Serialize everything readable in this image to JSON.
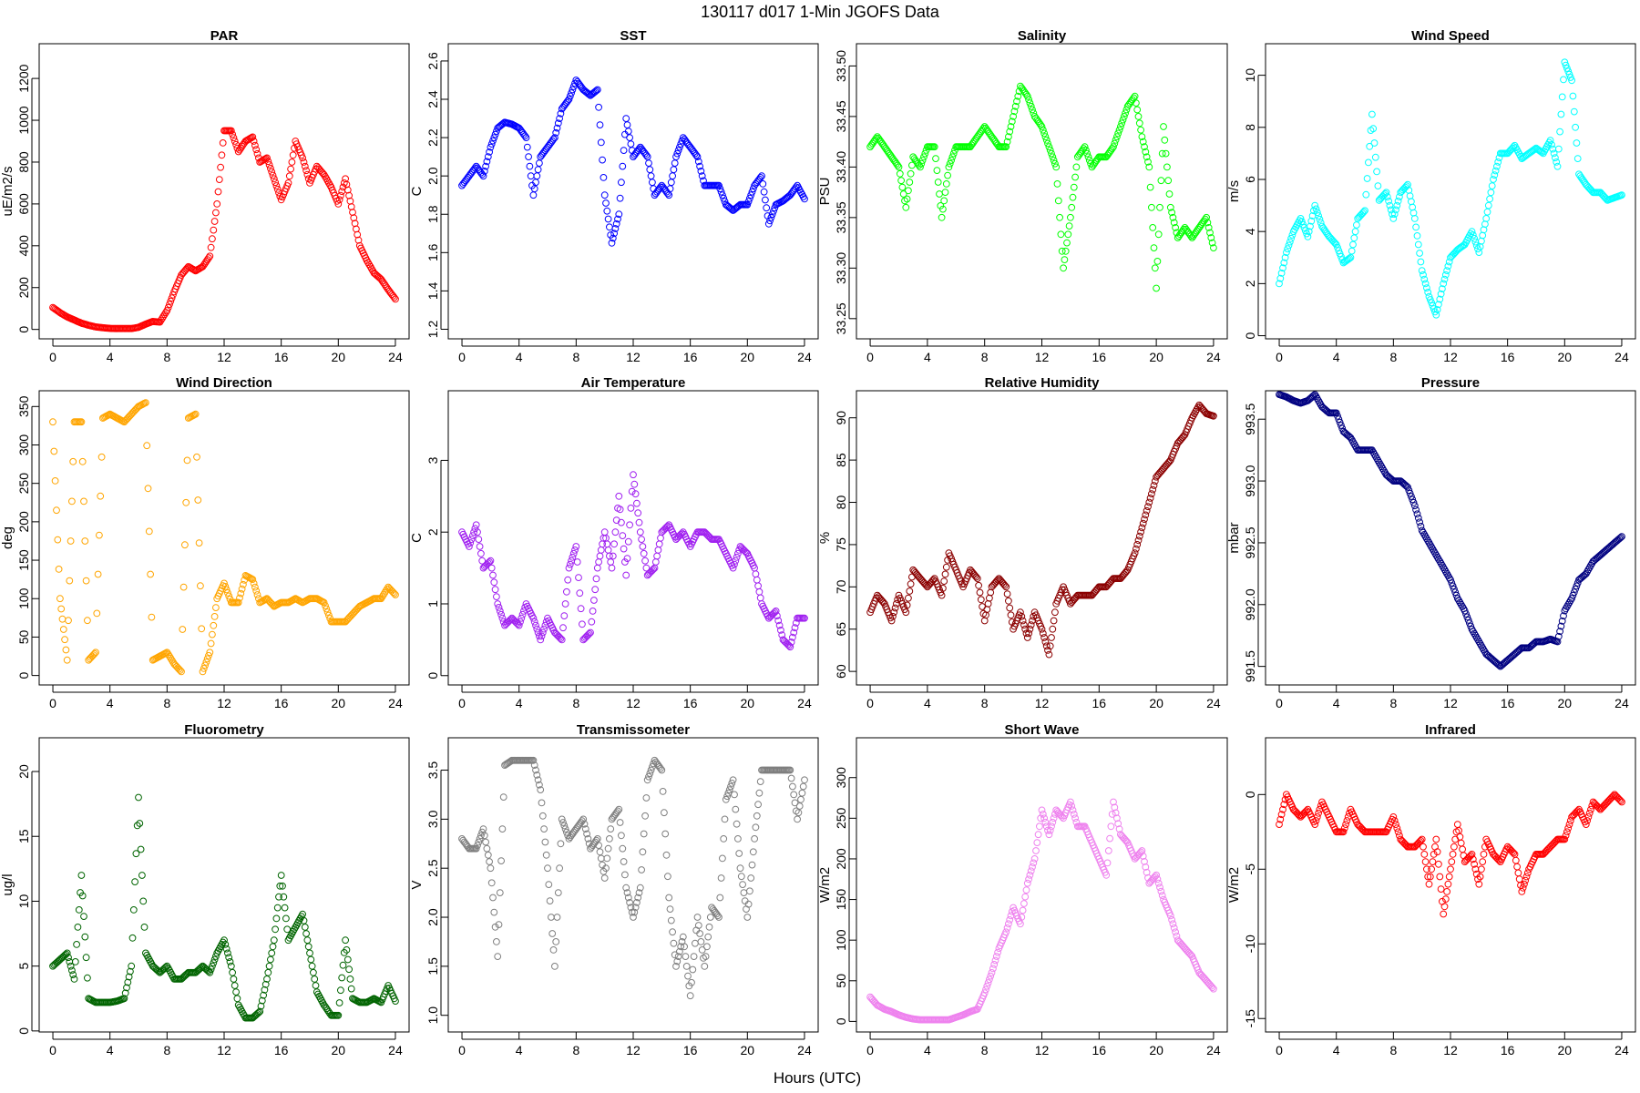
{
  "figure_title": "130117   d017   1-Min  JGOFS Data",
  "xlabel": "Hours (UTC)",
  "chart_data": [
    {
      "type": "scatter",
      "title": "PAR",
      "ylabel": "uE/m2/s",
      "color": "#ff0000",
      "xlim": [
        0,
        24
      ],
      "ylim": [
        -45,
        1366
      ],
      "xticks": [
        0,
        4,
        8,
        12,
        16,
        20,
        24
      ],
      "yticks": [
        0,
        200,
        400,
        600,
        800,
        1000,
        1200
      ],
      "x_step": 0.5,
      "y": [
        105,
        80,
        60,
        45,
        30,
        20,
        12,
        8,
        5,
        4,
        4,
        4,
        10,
        25,
        38,
        35,
        90,
        180,
        260,
        300,
        280,
        300,
        350,
        600,
        950,
        950,
        850,
        900,
        920,
        800,
        820,
        720,
        620,
        700,
        900,
        820,
        700,
        780,
        740,
        680,
        600,
        720,
        560,
        400,
        330,
        270,
        240,
        190,
        145
      ]
    },
    {
      "type": "scatter",
      "title": "SST",
      "ylabel": "C",
      "color": "#0000ff",
      "xlim": [
        0,
        24
      ],
      "ylim": [
        1.15,
        2.69
      ],
      "xticks": [
        0,
        4,
        8,
        12,
        16,
        20,
        24
      ],
      "yticks": [
        1.2,
        1.4,
        1.6,
        1.8,
        2.0,
        2.2,
        2.4,
        2.6
      ],
      "x_step": 0.5,
      "y": [
        1.95,
        2.0,
        2.05,
        2.0,
        2.15,
        2.25,
        2.28,
        2.27,
        2.25,
        2.2,
        1.9,
        2.1,
        2.15,
        2.2,
        2.35,
        2.4,
        2.5,
        2.45,
        2.42,
        2.45,
        1.9,
        1.65,
        1.8,
        2.3,
        2.1,
        2.15,
        2.1,
        1.9,
        1.95,
        1.9,
        2.1,
        2.2,
        2.15,
        2.1,
        1.95,
        1.95,
        1.95,
        1.85,
        1.82,
        1.85,
        1.85,
        1.95,
        2.0,
        1.75,
        1.85,
        1.87,
        1.9,
        1.95,
        1.88
      ]
    },
    {
      "type": "scatter",
      "title": "Salinity",
      "ylabel": "PSU",
      "color": "#00ff00",
      "xlim": [
        0,
        24
      ],
      "ylim": [
        33.23,
        33.522
      ],
      "xticks": [
        0,
        4,
        8,
        12,
        16,
        20,
        24
      ],
      "yticks": [
        33.25,
        33.3,
        33.35,
        33.4,
        33.45,
        33.5
      ],
      "x_step": 0.5,
      "y": [
        33.42,
        33.43,
        33.42,
        33.41,
        33.4,
        33.36,
        33.41,
        33.4,
        33.42,
        33.42,
        33.35,
        33.4,
        33.42,
        33.42,
        33.42,
        33.43,
        33.44,
        33.43,
        33.42,
        33.42,
        33.45,
        33.48,
        33.47,
        33.45,
        33.44,
        33.42,
        33.4,
        33.3,
        33.35,
        33.41,
        33.42,
        33.4,
        33.41,
        33.41,
        33.42,
        33.44,
        33.46,
        33.47,
        33.43,
        33.4,
        33.28,
        33.44,
        33.36,
        33.33,
        33.34,
        33.33,
        33.34,
        33.35,
        33.32
      ]
    },
    {
      "type": "scatter",
      "title": "Wind Speed",
      "ylabel": "m/s",
      "color": "#00ffff",
      "xlim": [
        0,
        24
      ],
      "ylim": [
        -0.12,
        11.21
      ],
      "xticks": [
        0,
        4,
        8,
        12,
        16,
        20,
        24
      ],
      "yticks": [
        0,
        2,
        4,
        6,
        8,
        10
      ],
      "x_step": 0.5,
      "y": [
        2,
        3.2,
        4,
        4.5,
        3.8,
        5,
        4.2,
        3.8,
        3.5,
        2.8,
        3,
        4.5,
        4.8,
        8.5,
        5.2,
        5.5,
        4.5,
        5.5,
        5.8,
        4.5,
        2.5,
        1.5,
        0.8,
        2,
        3,
        3.3,
        3.5,
        4,
        3.2,
        4.5,
        6,
        7,
        7,
        7.3,
        6.8,
        7,
        7.2,
        7,
        7.5,
        6.5,
        10.5,
        9.8,
        6.2,
        5.8,
        5.5,
        5.5,
        5.2,
        5.3,
        5.4
      ]
    },
    {
      "type": "scatter",
      "title": "Wind Direction",
      "ylabel": "deg",
      "color": "#ffa500",
      "xlim": [
        0,
        24
      ],
      "ylim": [
        -12.3,
        370.5
      ],
      "xticks": [
        0,
        4,
        8,
        12,
        16,
        20,
        24
      ],
      "yticks": [
        0,
        50,
        100,
        150,
        200,
        250,
        300,
        350
      ],
      "x_step": 0.5,
      "y": [
        330,
        100,
        20,
        330,
        330,
        20,
        30,
        335,
        340,
        335,
        330,
        340,
        350,
        355,
        20,
        25,
        30,
        15,
        5,
        335,
        340,
        5,
        30,
        100,
        120,
        95,
        95,
        130,
        125,
        95,
        100,
        90,
        95,
        95,
        100,
        95,
        100,
        100,
        95,
        70,
        70,
        70,
        80,
        90,
        95,
        100,
        100,
        115,
        105
      ]
    },
    {
      "type": "scatter",
      "title": "Air Temperature",
      "ylabel": "C",
      "color": "#a020f0",
      "xlim": [
        0,
        24
      ],
      "ylim": [
        -0.13,
        3.97
      ],
      "xticks": [
        0,
        4,
        8,
        12,
        16,
        20,
        24
      ],
      "yticks": [
        0,
        1,
        2,
        3
      ],
      "x_step": 0.5,
      "y": [
        2.0,
        1.8,
        2.1,
        1.5,
        1.6,
        1.0,
        0.7,
        0.8,
        0.7,
        1.0,
        0.8,
        0.5,
        0.8,
        0.6,
        0.5,
        1.5,
        1.8,
        0.5,
        0.6,
        1.5,
        2.0,
        1.5,
        2.5,
        1.4,
        2.8,
        2.0,
        1.4,
        1.5,
        2.0,
        2.1,
        1.9,
        2.0,
        1.8,
        2.0,
        2.0,
        1.9,
        1.9,
        1.7,
        1.5,
        1.8,
        1.7,
        1.5,
        1.0,
        0.8,
        0.9,
        0.5,
        0.4,
        0.8,
        0.8
      ]
    },
    {
      "type": "scatter",
      "title": "Relative Humidity",
      "ylabel": "%",
      "color": "#8b0000",
      "xlim": [
        0,
        24
      ],
      "ylim": [
        58.4,
        93.2
      ],
      "xticks": [
        0,
        4,
        8,
        12,
        16,
        20,
        24
      ],
      "yticks": [
        60,
        65,
        70,
        75,
        80,
        85,
        90
      ],
      "x_step": 0.5,
      "y": [
        67,
        69,
        68,
        66,
        69,
        67,
        72,
        71,
        70,
        71,
        69,
        74,
        72,
        70,
        72,
        71,
        66,
        70,
        71,
        70,
        65,
        67,
        64,
        67,
        65,
        62,
        68,
        70,
        68,
        69,
        69,
        69,
        70,
        70,
        71,
        71,
        72,
        74,
        77,
        80,
        83,
        84,
        85,
        87,
        88,
        90,
        91.5,
        90.5,
        90.2
      ]
    },
    {
      "type": "scatter",
      "title": "Pressure",
      "ylabel": "mbar",
      "color": "#000080",
      "xlim": [
        0,
        24
      ],
      "ylim": [
        991.35,
        993.73
      ],
      "xticks": [
        0,
        4,
        8,
        12,
        16,
        20,
        24
      ],
      "yticks": [
        991.5,
        992.0,
        992.5,
        993.0,
        993.5
      ],
      "x_step": 0.5,
      "y": [
        993.7,
        993.68,
        993.65,
        993.63,
        993.65,
        993.7,
        993.6,
        993.55,
        993.55,
        993.4,
        993.35,
        993.25,
        993.25,
        993.25,
        993.15,
        993.05,
        993.0,
        993.0,
        992.95,
        992.8,
        992.6,
        992.5,
        992.4,
        992.3,
        992.2,
        992.05,
        991.95,
        991.8,
        991.7,
        991.6,
        991.55,
        991.5,
        991.55,
        991.6,
        991.65,
        991.65,
        991.7,
        991.7,
        991.72,
        991.7,
        991.95,
        992.05,
        992.2,
        992.25,
        992.35,
        992.4,
        992.45,
        992.5,
        992.55
      ]
    },
    {
      "type": "scatter",
      "title": "Fluorometry",
      "ylabel": "ug/l",
      "color": "#006400",
      "xlim": [
        0,
        24
      ],
      "ylim": [
        -0.08,
        22.6
      ],
      "xticks": [
        0,
        4,
        8,
        12,
        16,
        20,
        24
      ],
      "yticks": [
        0,
        5,
        10,
        15,
        20
      ],
      "x_step": 0.5,
      "y": [
        5,
        5.5,
        6,
        4,
        12,
        2.5,
        2.2,
        2.2,
        2.2,
        2.3,
        2.5,
        5,
        18,
        6,
        5,
        4.5,
        5,
        4,
        4,
        4.5,
        4.5,
        5,
        4.5,
        6,
        7,
        5,
        2,
        1,
        1,
        1.5,
        4,
        7,
        12,
        7,
        8,
        9,
        6,
        3,
        2,
        1.2,
        1.2,
        7,
        2.5,
        2.2,
        2.2,
        2.5,
        2.2,
        3.5,
        2.3
      ]
    },
    {
      "type": "scatter",
      "title": "Transmissometer",
      "ylabel": "V",
      "color": "#7f7f7f",
      "xlim": [
        0,
        24
      ],
      "ylim": [
        0.83,
        3.83
      ],
      "xticks": [
        0,
        4,
        8,
        12,
        16,
        20,
        24
      ],
      "yticks": [
        1.0,
        1.5,
        2.0,
        2.5,
        3.0,
        3.5
      ],
      "x_step": 0.5,
      "y": [
        2.8,
        2.7,
        2.7,
        2.9,
        2.5,
        1.6,
        3.55,
        3.6,
        3.6,
        3.6,
        3.6,
        3.3,
        2.5,
        1.5,
        3.0,
        2.8,
        2.9,
        3.0,
        2.7,
        2.8,
        2.4,
        3.0,
        3.1,
        2.3,
        2.0,
        2.3,
        3.4,
        3.6,
        3.5,
        2.2,
        1.5,
        1.8,
        1.2,
        2.0,
        1.5,
        2.1,
        2.0,
        3.2,
        3.4,
        2.5,
        2.0,
        2.8,
        3.5,
        3.5,
        3.5,
        3.5,
        3.5,
        3.0,
        3.4
      ]
    },
    {
      "type": "scatter",
      "title": "Short Wave",
      "ylabel": "W/m2",
      "color": "#ee82ee",
      "xlim": [
        0,
        24
      ],
      "ylim": [
        -13,
        349
      ],
      "xticks": [
        0,
        4,
        8,
        12,
        16,
        20,
        24
      ],
      "yticks": [
        0,
        50,
        100,
        150,
        200,
        250,
        300
      ],
      "x_step": 0.5,
      "y": [
        30,
        20,
        15,
        12,
        8,
        5,
        3,
        2,
        2,
        2,
        2,
        2,
        5,
        8,
        12,
        15,
        35,
        60,
        90,
        110,
        140,
        120,
        170,
        200,
        260,
        230,
        260,
        250,
        270,
        240,
        240,
        220,
        200,
        180,
        270,
        230,
        220,
        200,
        210,
        170,
        180,
        150,
        130,
        100,
        90,
        80,
        60,
        50,
        40
      ]
    },
    {
      "type": "scatter",
      "title": "Infrared",
      "ylabel": "W/m2",
      "color": "#ff0000",
      "xlim": [
        0,
        24
      ],
      "ylim": [
        -15.9,
        3.8
      ],
      "xticks": [
        0,
        4,
        8,
        12,
        16,
        20,
        24
      ],
      "yticks": [
        -15,
        -10,
        -5,
        0
      ],
      "x_step": 0.5,
      "y": [
        -2,
        0,
        -1,
        -1.5,
        -1,
        -2,
        -0.5,
        -1.5,
        -2.5,
        -2.5,
        -1,
        -2,
        -2.5,
        -2.5,
        -2.5,
        -2.5,
        -1.5,
        -3,
        -3.5,
        -3.5,
        -3,
        -6,
        -3,
        -8,
        -5,
        -2,
        -4.5,
        -4,
        -6,
        -3,
        -4,
        -4.5,
        -3.5,
        -4,
        -6.5,
        -5,
        -4,
        -4,
        -3.5,
        -3,
        -3,
        -1.5,
        -1,
        -2,
        -0.5,
        -1,
        -0.5,
        0,
        -0.5
      ]
    }
  ]
}
